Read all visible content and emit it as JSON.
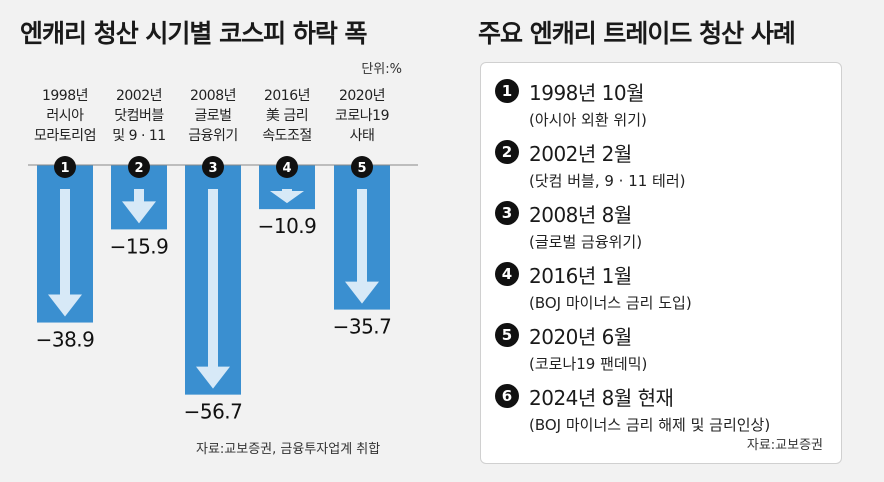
{
  "left_title": "엔캐리 청산 시기별 코스피 하락 폭",
  "unit": "단위:%",
  "source_left": "자료:교보증권, 금융투자업계 취합",
  "colors": {
    "bar": "#3a8fd0",
    "arrow": "#e9f3fb",
    "baseline": "#888888",
    "marker": "#111111"
  },
  "chart_data": {
    "type": "bar",
    "title": "엔캐리 청산 시기별 코스피 하락 폭",
    "ylabel": "단위:%",
    "ylim": [
      -60,
      0
    ],
    "categories": [
      [
        "1998년",
        "러시아",
        "모라토리엄"
      ],
      [
        "2002년",
        "닷컴버블",
        "및 9 · 11"
      ],
      [
        "2008년",
        "글로벌",
        "금융위기"
      ],
      [
        "2016년",
        "美 금리",
        "속도조절"
      ],
      [
        "2020년",
        "코로나19",
        "사태"
      ]
    ],
    "markers": [
      "1",
      "2",
      "3",
      "4",
      "5"
    ],
    "values": [
      -38.9,
      -15.9,
      -56.7,
      -10.9,
      -35.7
    ],
    "value_labels": [
      "−38.9",
      "−15.9",
      "−56.7",
      "−10.9",
      "−35.7"
    ]
  },
  "right_title": "주요 엔캐리 트레이드 청산 사례",
  "cases": [
    {
      "num": "1",
      "date": "1998년 10월",
      "desc": "(아시아 외환 위기)"
    },
    {
      "num": "2",
      "date": "2002년 2월",
      "desc": "(닷컴 버블, 9 · 11 테러)"
    },
    {
      "num": "3",
      "date": "2008년 8월",
      "desc": "(글로벌 금융위기)"
    },
    {
      "num": "4",
      "date": "2016년 1월",
      "desc": "(BOJ 마이너스 금리 도입)"
    },
    {
      "num": "5",
      "date": "2020년 6월",
      "desc": "(코로나19 팬데믹)"
    },
    {
      "num": "6",
      "date": "2024년 8월 현재",
      "desc": "(BOJ 마이너스 금리 해제 및 금리인상)"
    }
  ],
  "source_right": "자료:교보증권"
}
